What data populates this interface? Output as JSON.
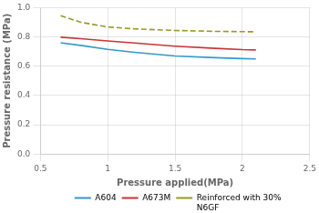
{
  "chart_data": {
    "type": "line",
    "xlabel": "Pressure applied(MPa)",
    "ylabel": "Pressure resistance (MPa)",
    "x": [
      0.65,
      0.8,
      1.0,
      1.2,
      1.5,
      1.8,
      2.0,
      2.1
    ],
    "series": [
      {
        "name": "A604",
        "color": "#3399cc",
        "line_style": "solid",
        "values": [
          0.76,
          0.742,
          0.715,
          0.695,
          0.67,
          0.658,
          0.652,
          0.65
        ]
      },
      {
        "name": "A673M",
        "color": "#cc3333",
        "line_style": "solid",
        "values": [
          0.798,
          0.788,
          0.772,
          0.758,
          0.737,
          0.722,
          0.713,
          0.711
        ]
      },
      {
        "name": "Reinforced with 30%\nN6GF",
        "color": "#999922",
        "line_style": "dashed",
        "values": [
          0.945,
          0.9,
          0.868,
          0.855,
          0.844,
          0.838,
          0.836,
          0.835
        ]
      }
    ],
    "xlim": [
      0.5,
      2.5
    ],
    "xticks": [
      0.5,
      1,
      1.5,
      2,
      2.5
    ],
    "ylim": [
      0.0,
      1.0
    ],
    "yticks": [
      {
        "value": 0,
        "label": "0.0"
      },
      0.2,
      0.4,
      0.6,
      0.8,
      {
        "value": 1,
        "label": "1.0"
      }
    ],
    "grid": true,
    "legend": "lower right"
  }
}
